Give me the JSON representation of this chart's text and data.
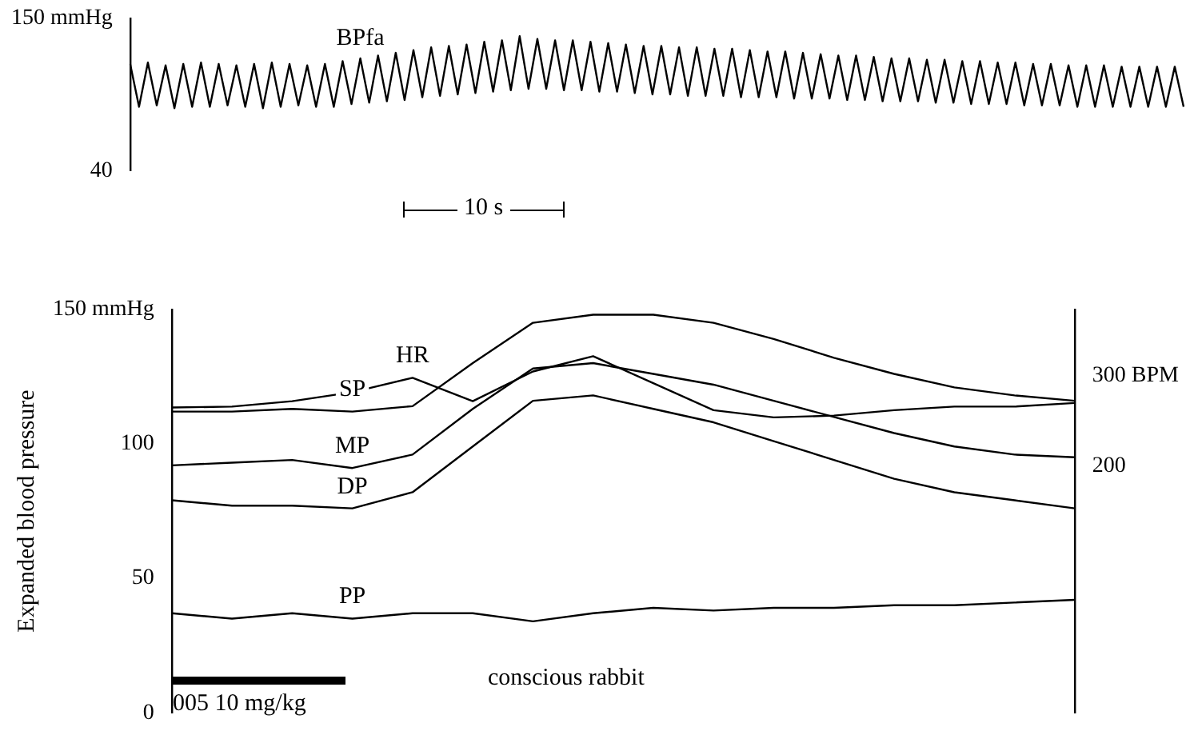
{
  "chart_data": [
    {
      "type": "line",
      "annotations": [
        "10 s"
      ],
      "tick_labels": "y",
      "grid": false,
      "legend": false,
      "ylim": [
        40,
        150
      ],
      "yticks": [
        {
          "value": 150,
          "label": "150 mmHg"
        },
        40
      ],
      "categories": [
        null,
        null,
        null,
        null,
        null,
        null,
        null,
        null,
        null,
        null,
        null,
        null,
        null,
        null,
        null,
        null,
        null,
        null,
        null,
        null,
        null,
        null,
        null,
        null,
        null,
        null,
        null,
        null,
        null,
        null,
        null,
        null,
        null,
        null,
        null,
        null,
        null,
        null,
        null,
        null,
        null,
        null,
        null,
        null,
        null,
        null,
        null,
        null,
        null,
        null,
        null,
        null,
        null,
        null,
        null,
        null,
        null,
        null,
        null,
        null,
        null,
        null,
        null,
        null,
        null,
        null,
        null,
        null,
        null,
        null,
        null,
        null,
        null,
        null,
        null,
        null,
        null,
        null,
        null,
        null,
        null,
        null,
        null,
        null,
        null,
        null,
        null,
        null,
        null,
        null,
        null,
        null,
        null,
        null,
        null,
        null,
        null,
        null,
        null,
        null,
        null,
        null,
        null,
        null,
        null,
        null,
        null,
        null,
        null,
        null,
        null,
        null,
        null,
        null,
        null,
        null,
        null,
        null,
        null,
        null
      ],
      "series": [
        {
          "name": "BPfa",
          "color": "#000000",
          "values": [
            117,
            86,
            118,
            87,
            116,
            85,
            117,
            86,
            118,
            86,
            117,
            87,
            116,
            86,
            117,
            85,
            118,
            86,
            117,
            87,
            116,
            86,
            117,
            86,
            119,
            88,
            121,
            89,
            123,
            90,
            125,
            91,
            127,
            93,
            129,
            94,
            130,
            95,
            131,
            96,
            133,
            97,
            134,
            98,
            137,
            99,
            135,
            99,
            134,
            98,
            134,
            98,
            133,
            97,
            132,
            97,
            131,
            96,
            130,
            95,
            130,
            95,
            129,
            94,
            129,
            94,
            128,
            94,
            128,
            93,
            127,
            93,
            126,
            93,
            126,
            92,
            125,
            92,
            124,
            92,
            123,
            91,
            123,
            91,
            122,
            90,
            121,
            90,
            121,
            90,
            120,
            89,
            120,
            89,
            119,
            88,
            119,
            88,
            118,
            88,
            118,
            87,
            117,
            87,
            117,
            87,
            116,
            86,
            116,
            86,
            116,
            86,
            115,
            86,
            115,
            86,
            115,
            86,
            115,
            86
          ]
        }
      ]
    },
    {
      "type": "line",
      "ylabel": "Expanded blood pressure",
      "annotations": [
        "005 10 mg/kg",
        "conscious rabbit"
      ],
      "tick_labels": "y",
      "grid": false,
      "legend": false,
      "ylim": [
        0,
        150
      ],
      "yticks": [
        {
          "value": 150,
          "label": "150 mmHg"
        },
        100,
        50,
        0
      ],
      "y2lim": [
        -74,
        374
      ],
      "y2ticks": [
        {
          "value": 300,
          "label": "300 BPM"
        },
        200
      ],
      "categories": [
        null,
        null,
        null,
        null,
        null,
        null,
        null,
        null,
        null,
        null,
        null,
        null,
        null,
        null,
        null,
        null
      ],
      "series": [
        {
          "name": "HR",
          "color": "#000000",
          "axis": "y2",
          "values": [
            265,
            266,
            272,
            282,
            298,
            272,
            305,
            322,
            292,
            262,
            254,
            256,
            262,
            266,
            266,
            270
          ]
        },
        {
          "name": "SP",
          "color": "#000000",
          "values": [
            112,
            112,
            113,
            112,
            114,
            130,
            145,
            148,
            148,
            145,
            139,
            132,
            126,
            121,
            118,
            116
          ]
        },
        {
          "name": "MP",
          "color": "#000000",
          "values": [
            92,
            93,
            94,
            91,
            96,
            113,
            128,
            130,
            126,
            122,
            116,
            110,
            104,
            99,
            96,
            95
          ]
        },
        {
          "name": "DP",
          "color": "#000000",
          "values": [
            79,
            77,
            77,
            76,
            82,
            99,
            116,
            118,
            113,
            108,
            101,
            94,
            87,
            82,
            79,
            76
          ]
        },
        {
          "name": "PP",
          "color": "#000000",
          "values": [
            37,
            35,
            37,
            35,
            37,
            37,
            34,
            37,
            39,
            38,
            39,
            39,
            40,
            40,
            41,
            42
          ]
        }
      ]
    }
  ]
}
